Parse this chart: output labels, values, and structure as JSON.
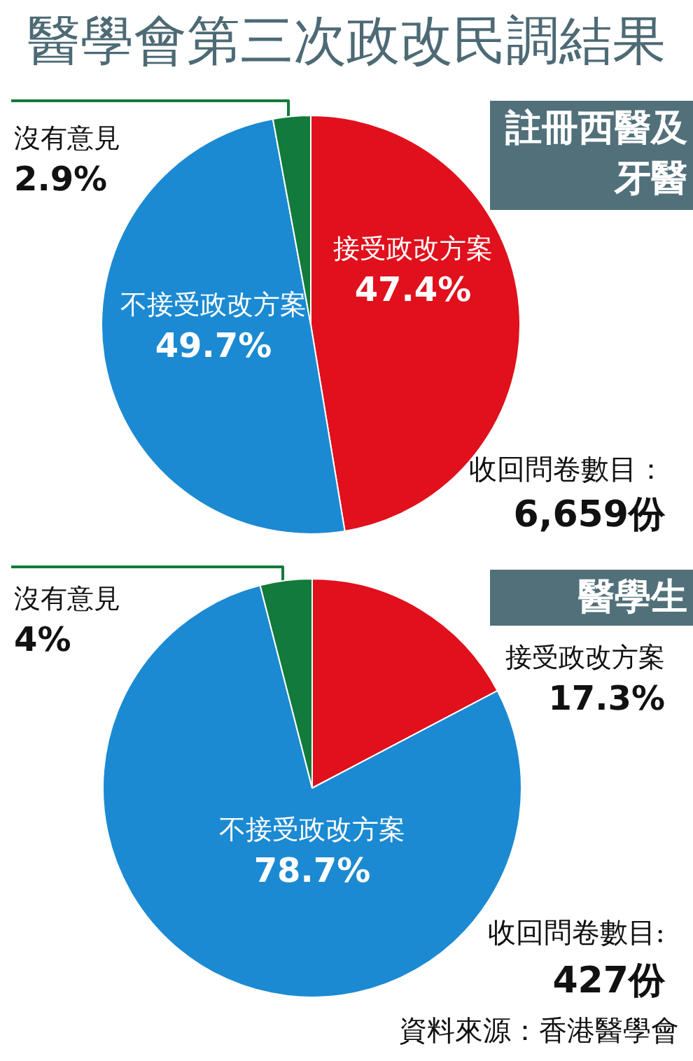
{
  "chart_data": [
    {
      "type": "pie",
      "title": "醫學會第三次政改民調結果",
      "subtitle": "註冊西醫及牙醫",
      "categories": [
        "接受政改方案",
        "不接受政改方案",
        "沒有意見"
      ],
      "values": [
        47.4,
        49.7,
        2.9
      ],
      "colors": [
        "#e0101c",
        "#1b8ad2",
        "#127a3a"
      ],
      "value_labels": [
        "47.4%",
        "49.7%",
        "2.9%"
      ],
      "annotations": [
        "收回問卷數目：",
        "6,659份"
      ]
    },
    {
      "type": "pie",
      "subtitle": "醫學生",
      "categories": [
        "接受政改方案",
        "不接受政改方案",
        "沒有意見"
      ],
      "values": [
        17.3,
        78.7,
        4
      ],
      "colors": [
        "#e0101c",
        "#1b8ad2",
        "#127a3a"
      ],
      "value_labels": [
        "17.3%",
        "78.7%",
        "4%"
      ],
      "annotations": [
        "收回問卷數目:",
        "427份",
        "資料來源：香港醫學會"
      ]
    }
  ]
}
